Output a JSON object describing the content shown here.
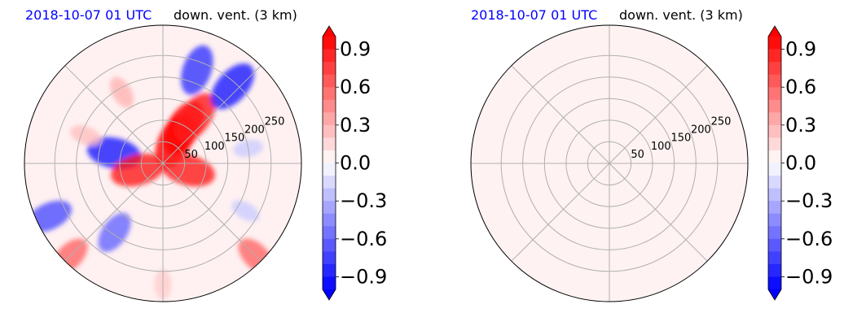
{
  "chart_data": [
    {
      "type": "heatmap",
      "projection": "polar",
      "title_left": "2018-10-07 01 UTC",
      "title_right": "down. vent. (3 km)",
      "title_left_color": "#0000ff",
      "colormap": "bwr",
      "radial_ticks": [
        "50",
        "100",
        "150",
        "200",
        "250"
      ],
      "radial_tick_values": [
        50,
        100,
        150,
        200,
        250
      ],
      "r_max": 320,
      "angular_gridlines_deg": [
        0,
        45,
        90,
        135,
        180,
        225,
        270,
        315
      ],
      "colorbar": {
        "ticks": [
          "−0.9",
          "−0.6",
          "−0.3",
          "0.0",
          "0.3",
          "0.6",
          "0.9"
        ],
        "tick_values": [
          -0.9,
          -0.6,
          -0.3,
          0.0,
          0.3,
          0.6,
          0.9
        ],
        "range": [
          -1.0,
          1.0
        ],
        "extend": "both"
      },
      "field": "varied",
      "features": [
        {
          "angle_deg": 62,
          "r": 60,
          "value": 1.0
        },
        {
          "angle_deg": 60,
          "r": 95,
          "value": 1.0
        },
        {
          "angle_deg": 55,
          "r": 130,
          "value": 0.9
        },
        {
          "angle_deg": 48,
          "r": 240,
          "value": -0.9
        },
        {
          "angle_deg": 70,
          "r": 230,
          "value": -0.8
        },
        {
          "angle_deg": 168,
          "r": 115,
          "value": -0.9
        },
        {
          "angle_deg": 195,
          "r": 60,
          "value": 0.9
        },
        {
          "angle_deg": 345,
          "r": 60,
          "value": 0.9
        },
        {
          "angle_deg": 205,
          "r": 290,
          "value": -0.7
        },
        {
          "angle_deg": 235,
          "r": 195,
          "value": -0.6
        },
        {
          "angle_deg": 120,
          "r": 190,
          "value": 0.3
        },
        {
          "angle_deg": 160,
          "r": 190,
          "value": 0.25
        },
        {
          "angle_deg": 10,
          "r": 200,
          "value": -0.2
        },
        {
          "angle_deg": 330,
          "r": 220,
          "value": -0.2
        },
        {
          "angle_deg": 225,
          "r": 305,
          "value": 0.6
        },
        {
          "angle_deg": 315,
          "r": 305,
          "value": 0.6
        },
        {
          "angle_deg": 270,
          "r": 280,
          "value": 0.2
        }
      ]
    },
    {
      "type": "heatmap",
      "projection": "polar",
      "title_left": "2018-10-07 01 UTC",
      "title_right": "down. vent. (3 km)",
      "title_left_color": "#0000ff",
      "colormap": "bwr",
      "radial_ticks": [
        "50",
        "100",
        "150",
        "200",
        "250"
      ],
      "radial_tick_values": [
        50,
        100,
        150,
        200,
        250
      ],
      "r_max": 320,
      "angular_gridlines_deg": [
        0,
        45,
        90,
        135,
        180,
        225,
        270,
        315
      ],
      "colorbar": {
        "ticks": [
          "−0.9",
          "−0.6",
          "−0.3",
          "0.0",
          "0.3",
          "0.6",
          "0.9"
        ],
        "tick_values": [
          -0.9,
          -0.6,
          -0.3,
          0.0,
          0.3,
          0.6,
          0.9
        ],
        "range": [
          -1.0,
          1.0
        ],
        "extend": "both"
      },
      "field": "uniform",
      "uniform_value": 0.05
    }
  ]
}
